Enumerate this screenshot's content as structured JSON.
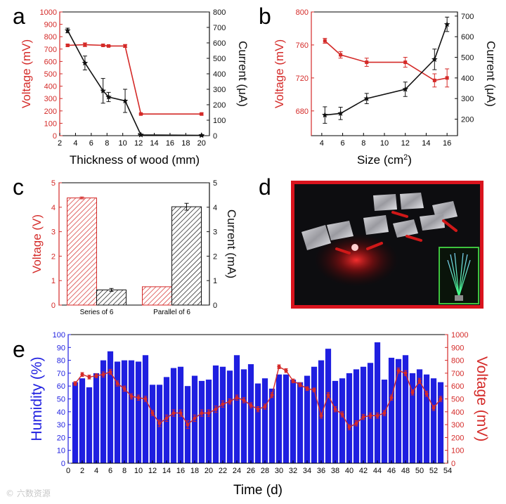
{
  "colors": {
    "red": "#d42a28",
    "black": "#111111",
    "blue": "#1f1fe0",
    "bar_red": "#d9534f",
    "photo_frame": "#d9141e",
    "inset_frame": "#3ec23e"
  },
  "watermark": "© 六数资源",
  "panels": {
    "a": {
      "letter": "a"
    },
    "b": {
      "letter": "b"
    },
    "c": {
      "letter": "c"
    },
    "d": {
      "letter": "d",
      "description": "photo"
    },
    "e": {
      "letter": "e"
    }
  },
  "chart_data": [
    {
      "id": "a",
      "type": "line",
      "title": "",
      "xlabel": "Thickness of wood (mm)",
      "ylabel": "Voltage (mV)",
      "y2label": "Current (μA)",
      "xlim": [
        2,
        21
      ],
      "ylim": [
        0,
        1000
      ],
      "y2lim": [
        0,
        800
      ],
      "xticks": [
        2,
        4,
        6,
        8,
        10,
        12,
        14,
        16,
        18,
        20
      ],
      "yticks": [
        0,
        100,
        200,
        300,
        400,
        500,
        600,
        700,
        800,
        900,
        1000
      ],
      "y2ticks": [
        0,
        100,
        200,
        300,
        400,
        500,
        600,
        700,
        800
      ],
      "series": [
        {
          "name": "Voltage",
          "axis": "left",
          "color": "#d42a28",
          "marker": "square",
          "x": [
            3,
            5.2,
            7.5,
            8.2,
            10.3,
            12.3,
            20
          ],
          "y": [
            730,
            735,
            730,
            725,
            725,
            175,
            175
          ],
          "err": [
            8,
            15,
            8,
            6,
            12,
            6,
            8
          ]
        },
        {
          "name": "Current",
          "axis": "right",
          "color": "#111111",
          "marker": "star",
          "x": [
            3,
            5.2,
            7.5,
            8.2,
            10.3,
            12.3,
            20
          ],
          "y": [
            680,
            470,
            290,
            250,
            225,
            5,
            2
          ],
          "err": [
            15,
            45,
            80,
            30,
            75,
            5,
            5
          ]
        }
      ]
    },
    {
      "id": "b",
      "type": "line",
      "title": "",
      "xlabel": "Size (cm²)",
      "ylabel": "Voltage (mV)",
      "y2label": "Current (μA)",
      "xlim": [
        3,
        17
      ],
      "ylim": [
        650,
        800
      ],
      "y2lim": [
        120,
        720
      ],
      "xticks": [
        4,
        6,
        8,
        10,
        12,
        14,
        16
      ],
      "yticks": [
        680,
        720,
        760,
        800
      ],
      "y2ticks": [
        200,
        300,
        400,
        500,
        600,
        700
      ],
      "series": [
        {
          "name": "Voltage",
          "axis": "left",
          "color": "#d42a28",
          "marker": "square",
          "x": [
            4.3,
            5.8,
            8.3,
            12,
            14.8,
            16
          ],
          "y": [
            765,
            748,
            739,
            739,
            717,
            720
          ],
          "err": [
            3,
            4,
            5,
            6,
            8,
            11
          ]
        },
        {
          "name": "Current",
          "axis": "right",
          "color": "#111111",
          "marker": "star",
          "x": [
            4.3,
            5.8,
            8.3,
            12,
            14.8,
            16
          ],
          "y": [
            220,
            228,
            300,
            345,
            490,
            660
          ],
          "err": [
            40,
            30,
            25,
            35,
            50,
            35
          ]
        }
      ]
    },
    {
      "id": "c",
      "type": "bar",
      "title": "",
      "xlabel": "",
      "ylabel": "Voltage (V)",
      "y2label": "Current (mA)",
      "categories": [
        "Series of 6",
        "Parallel of 6"
      ],
      "ylim": [
        0,
        5
      ],
      "y2lim": [
        0,
        5
      ],
      "yticks": [
        0,
        1,
        2,
        3,
        4,
        5
      ],
      "y2ticks": [
        0,
        1,
        2,
        3,
        4,
        5
      ],
      "series": [
        {
          "name": "Voltage",
          "axis": "left",
          "color": "#d42a28",
          "values": [
            4.38,
            0.75
          ],
          "err": [
            0.04,
            0
          ]
        },
        {
          "name": "Current",
          "axis": "right",
          "color": "#111111",
          "values": [
            0.62,
            4.02
          ],
          "err": [
            0.06,
            0.14
          ]
        }
      ]
    },
    {
      "id": "e",
      "type": "bar",
      "title": "",
      "xlabel": "Time (d)",
      "ylabel": "Humidity (%)",
      "y2label": "Voltage (mV)",
      "xlim": [
        0,
        54
      ],
      "ylim": [
        0,
        100
      ],
      "y2lim": [
        0,
        1000
      ],
      "xticks": [
        0,
        2,
        4,
        6,
        8,
        10,
        12,
        14,
        16,
        18,
        20,
        22,
        24,
        26,
        28,
        30,
        32,
        34,
        36,
        38,
        40,
        42,
        44,
        46,
        48,
        50,
        52,
        54
      ],
      "yticks": [
        0,
        10,
        20,
        30,
        40,
        50,
        60,
        70,
        80,
        90,
        100
      ],
      "y2ticks": [
        0,
        100,
        200,
        300,
        400,
        500,
        600,
        700,
        800,
        900,
        1000
      ],
      "days": [
        1,
        2,
        3,
        4,
        5,
        6,
        7,
        8,
        9,
        10,
        11,
        12,
        13,
        14,
        15,
        16,
        17,
        18,
        19,
        20,
        21,
        22,
        23,
        24,
        25,
        26,
        27,
        28,
        29,
        30,
        31,
        32,
        33,
        34,
        35,
        36,
        37,
        38,
        39,
        40,
        41,
        42,
        43,
        44,
        45,
        46,
        47,
        48,
        49,
        50,
        51,
        52,
        53
      ],
      "humidity": [
        63,
        66,
        59,
        70,
        80,
        87,
        79,
        80,
        80,
        79,
        84,
        61,
        61,
        67,
        74,
        75,
        60,
        68,
        64,
        65,
        76,
        75,
        72,
        84,
        73,
        77,
        62,
        66,
        58,
        69,
        69,
        65,
        63,
        68,
        75,
        80,
        89,
        64,
        66,
        70,
        73,
        75,
        78,
        94,
        65,
        82,
        81,
        84,
        70,
        73,
        69,
        66,
        63
      ],
      "voltage": [
        620,
        690,
        670,
        680,
        690,
        710,
        620,
        580,
        520,
        510,
        500,
        390,
        310,
        350,
        390,
        390,
        300,
        350,
        390,
        390,
        420,
        460,
        480,
        510,
        490,
        450,
        420,
        440,
        530,
        750,
        720,
        640,
        610,
        580,
        570,
        370,
        530,
        420,
        380,
        280,
        310,
        360,
        370,
        370,
        390,
        510,
        720,
        700,
        550,
        640,
        540,
        430,
        500
      ],
      "voltage_err": [
        15,
        15,
        15,
        15,
        20,
        20,
        20,
        20,
        20,
        20,
        20,
        20,
        25,
        25,
        25,
        25,
        30,
        25,
        25,
        25,
        25,
        25,
        20,
        20,
        20,
        20,
        20,
        20,
        20,
        15,
        15,
        15,
        15,
        15,
        15,
        20,
        20,
        20,
        20,
        20,
        20,
        20,
        20,
        20,
        20,
        20,
        20,
        20,
        20,
        20,
        20,
        20,
        20
      ]
    }
  ]
}
